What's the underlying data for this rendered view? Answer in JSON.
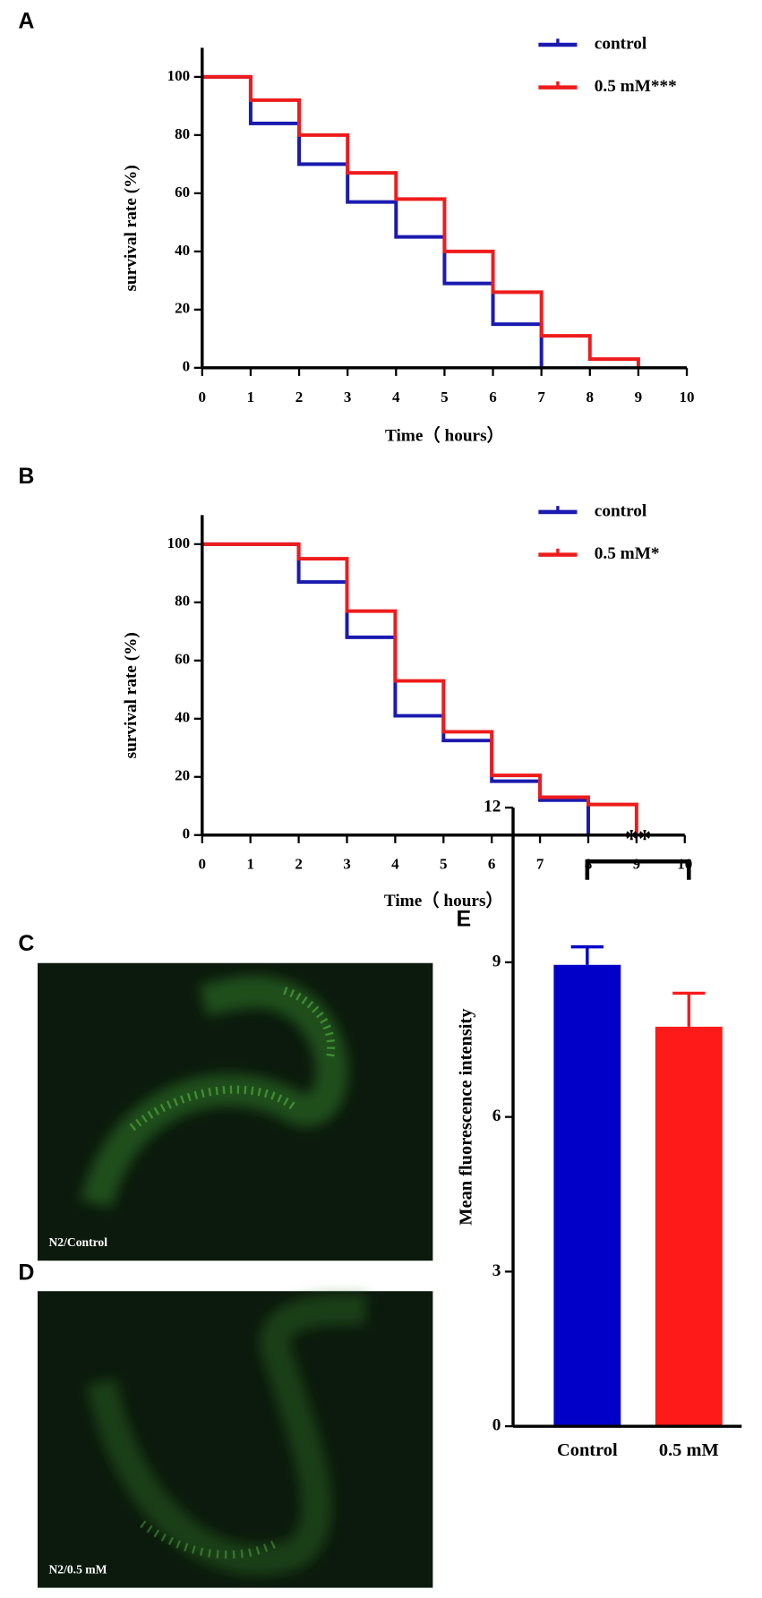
{
  "chart_data": [
    {
      "type": "line",
      "step": "post",
      "panel_label": "A",
      "xlabel": "Time（ hours）",
      "ylabel": "survival rate (%)",
      "xlim": [
        0,
        10
      ],
      "xticks": [
        0,
        1,
        2,
        3,
        4,
        5,
        6,
        7,
        8,
        9,
        10
      ],
      "ylim": [
        0,
        110
      ],
      "yticks": [
        0,
        20,
        40,
        60,
        80,
        100
      ],
      "series": [
        {
          "name": "control",
          "color": "#1a1ab0",
          "x": [
            0,
            1,
            2,
            3,
            4,
            5,
            6,
            7
          ],
          "values": [
            100,
            84,
            70,
            57,
            45,
            29,
            15,
            0
          ]
        },
        {
          "name": "0.5 mM***",
          "color": "#ee1c1c",
          "x": [
            0,
            1,
            2,
            3,
            4,
            5,
            6,
            7,
            8,
            9
          ],
          "values": [
            100,
            92,
            80,
            67,
            58,
            40,
            26,
            11,
            3,
            0
          ]
        }
      ]
    },
    {
      "type": "line",
      "step": "post",
      "panel_label": "B",
      "xlabel": "Time（ hours）",
      "ylabel": "survival rate (%)",
      "xlim": [
        0,
        10
      ],
      "xticks": [
        0,
        1,
        2,
        3,
        4,
        5,
        6,
        7,
        8,
        9,
        10
      ],
      "ylim": [
        0,
        110
      ],
      "yticks": [
        0,
        20,
        40,
        60,
        80,
        100
      ],
      "series": [
        {
          "name": "control",
          "color": "#1a1ab0",
          "x": [
            0,
            2,
            3,
            4,
            5,
            6,
            7,
            8
          ],
          "values": [
            100,
            87,
            68,
            41,
            32.5,
            18.5,
            12,
            0
          ]
        },
        {
          "name": "0.5 mM*",
          "color": "#ee1c1c",
          "x": [
            0,
            2,
            3,
            4,
            5,
            6,
            7,
            8,
            9
          ],
          "values": [
            100,
            95,
            77,
            53,
            35.5,
            20.5,
            13,
            10.5,
            0
          ]
        }
      ]
    },
    {
      "type": "bar",
      "panel_label": "E",
      "ylabel": "Mean fluorescence intensity",
      "categories": [
        "Control",
        "0.5 mM"
      ],
      "values": [
        8.95,
        7.75
      ],
      "errors": [
        0.35,
        0.65
      ],
      "colors": [
        "#0000c8",
        "#ff1a1a"
      ],
      "ylim": [
        0,
        12
      ],
      "yticks": [
        0,
        3,
        6,
        9,
        12
      ],
      "annotation": "**"
    }
  ],
  "images": [
    {
      "panel_label": "C",
      "caption": "N2/Control"
    },
    {
      "panel_label": "D",
      "caption": "N2/0.5 mM"
    }
  ]
}
